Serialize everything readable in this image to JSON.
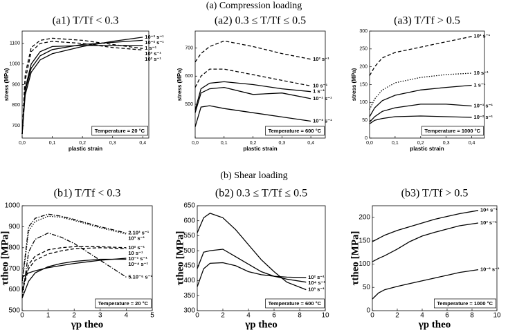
{
  "sections": [
    "(a) Compression loading",
    "(b) Shear loading"
  ],
  "chart_data": [
    {
      "type": "line",
      "title": "(a1) T/Tf < 0.3",
      "xlabel": "plastic strain",
      "ylabel": "stress (MPa)",
      "annotation": "Temperature = 20 °C",
      "xlim": [
        0,
        0.42
      ],
      "ylim": [
        640,
        1160
      ],
      "xticks": [
        {
          "value": 0,
          "label": "0,0"
        },
        {
          "value": 0.1,
          "label": "0,1"
        },
        {
          "value": 0.2,
          "label": "0,2"
        },
        {
          "value": 0.3,
          "label": "0,3"
        },
        {
          "value": 0.4,
          "label": "0,4"
        }
      ],
      "yticks": [
        700,
        800,
        900,
        1000,
        1100
      ],
      "x": [
        0,
        0.01,
        0.03,
        0.06,
        0.1,
        0.2,
        0.3,
        0.4
      ],
      "series": [
        {
          "name": "10⁻³ s⁻¹",
          "color": "#000000",
          "dash": "solid",
          "values": [
            660,
            850,
            960,
            1020,
            1050,
            1085,
            1110,
            1130
          ]
        },
        {
          "name": "10⁻² s⁻¹",
          "color": "#000000",
          "dash": "solid",
          "values": [
            660,
            870,
            980,
            1040,
            1070,
            1095,
            1105,
            1115
          ]
        },
        {
          "name": "1 s⁻¹",
          "color": "#000000",
          "dash": "solid",
          "values": [
            660,
            880,
            1000,
            1060,
            1085,
            1090,
            1090,
            1090
          ]
        },
        {
          "name": "10² s⁻¹",
          "color": "#000000",
          "dash": "dashed",
          "values": [
            660,
            920,
            1060,
            1100,
            1110,
            1100,
            1080,
            1068
          ]
        },
        {
          "name": "10³ s⁻¹",
          "color": "#000000",
          "dash": "dashed",
          "values": [
            660,
            950,
            1080,
            1115,
            1125,
            1115,
            1095,
            1075
          ]
        }
      ]
    },
    {
      "type": "line",
      "title": "(a2) 0.3 ≤ T/Tf ≤ 0.5",
      "ylabel": "stress (MPa)",
      "xlabel": "plastic strain",
      "annotation": "Temperature = 600 °C",
      "xlim": [
        0,
        0.45
      ],
      "ylim": [
        380,
        760
      ],
      "xticks": [
        {
          "value": 0,
          "label": "0,0"
        },
        {
          "value": 0.1,
          "label": "0,1"
        },
        {
          "value": 0.2,
          "label": "0,2"
        },
        {
          "value": 0.3,
          "label": "0,3"
        },
        {
          "value": 0.4,
          "label": "0,4"
        }
      ],
      "yticks": [
        500,
        600,
        700
      ],
      "x": [
        0,
        0.02,
        0.05,
        0.1,
        0.2,
        0.3,
        0.4
      ],
      "series": [
        {
          "name": "10² s⁻¹",
          "color": "#000000",
          "dash": "dashed",
          "values": [
            650,
            680,
            705,
            725,
            705,
            680,
            660
          ]
        },
        {
          "name": "10 s⁻¹",
          "color": "#000000",
          "dash": "dashed",
          "values": [
            560,
            600,
            625,
            625,
            605,
            585,
            565
          ]
        },
        {
          "name": "1 s⁻¹",
          "color": "#000000",
          "dash": "solid",
          "values": [
            480,
            555,
            575,
            580,
            570,
            555,
            545
          ]
        },
        {
          "name": "10⁻¹ s⁻¹",
          "color": "#000000",
          "dash": "solid",
          "values": [
            470,
            540,
            555,
            560,
            535,
            540,
            520
          ]
        },
        {
          "name": "10⁻³ s⁻¹",
          "color": "#000000",
          "dash": "solid",
          "values": [
            420,
            490,
            495,
            485,
            470,
            455,
            440
          ]
        }
      ]
    },
    {
      "type": "line",
      "title": "(a3) T/Tf > 0.5",
      "ylabel": "stress (MPa)",
      "xlabel": "plastic strain",
      "annotation": "Temperature = 1000 °C",
      "xlim": [
        0,
        0.45
      ],
      "ylim": [
        0,
        300
      ],
      "xticks": [
        {
          "value": 0,
          "label": "0,0"
        },
        {
          "value": 0.1,
          "label": "0,1"
        },
        {
          "value": 0.2,
          "label": "0,2"
        },
        {
          "value": 0.3,
          "label": "0,3"
        },
        {
          "value": 0.4,
          "label": "0,4"
        }
      ],
      "yticks": [
        0,
        50,
        100,
        150,
        200,
        250,
        300
      ],
      "x": [
        0,
        0.02,
        0.05,
        0.1,
        0.2,
        0.3,
        0.4
      ],
      "series": [
        {
          "name": "10³ s⁻¹",
          "color": "#000000",
          "dash": "dashed",
          "values": [
            175,
            200,
            225,
            240,
            255,
            270,
            285
          ]
        },
        {
          "name": "10 s⁻¹",
          "color": "#000000",
          "dash": "dotted",
          "values": [
            80,
            110,
            135,
            155,
            170,
            178,
            182
          ]
        },
        {
          "name": "1 s⁻¹",
          "color": "#000000",
          "dash": "solid",
          "values": [
            60,
            85,
            105,
            120,
            135,
            142,
            148
          ]
        },
        {
          "name": "10⁻¹ s⁻¹",
          "color": "#000000",
          "dash": "solid",
          "values": [
            45,
            60,
            75,
            85,
            95,
            95,
            90
          ]
        },
        {
          "name": "10⁻² s⁻¹",
          "color": "#000000",
          "dash": "solid",
          "values": [
            40,
            50,
            55,
            60,
            62,
            60,
            58
          ]
        }
      ]
    },
    {
      "type": "line",
      "title": "(b1) T/Tf < 0.3",
      "ylabel": "τtheo [MPa]",
      "xlabel": "γp theo",
      "annotation": "Temperature = 20 °C",
      "xlim": [
        0,
        5
      ],
      "ylim": [
        500,
        1000
      ],
      "xticks": [
        0,
        1,
        2,
        3,
        4,
        5
      ],
      "yticks": [
        500,
        600,
        700,
        800,
        900,
        1000
      ],
      "x": [
        0,
        0.25,
        0.5,
        1,
        1.5,
        2,
        3,
        4
      ],
      "series": [
        {
          "name": "2.10³ s⁻¹",
          "color": "#000000",
          "dash": "dashdot",
          "values": [
            640,
            900,
            940,
            960,
            950,
            935,
            900,
            870
          ]
        },
        {
          "name": "10³ s⁻¹",
          "color": "#000000",
          "dash": "dotted",
          "values": [
            630,
            880,
            925,
            950,
            945,
            930,
            895,
            865
          ]
        },
        {
          "name": "10² s⁻¹",
          "color": "#000000",
          "dash": "dashed",
          "values": [
            600,
            720,
            760,
            790,
            800,
            805,
            805,
            800
          ]
        },
        {
          "name": "10 s⁻¹",
          "color": "#000000",
          "dash": "dashed",
          "values": [
            590,
            700,
            740,
            770,
            785,
            795,
            800,
            795
          ]
        },
        {
          "name": "10⁻¹ s⁻¹",
          "color": "#000000",
          "dash": "solid",
          "values": [
            660,
            680,
            690,
            705,
            715,
            725,
            740,
            750
          ]
        },
        {
          "name": "10⁻⁴ s⁻¹",
          "color": "#000000",
          "dash": "solid",
          "values": [
            560,
            640,
            680,
            710,
            725,
            735,
            745,
            745
          ]
        },
        {
          "name": "5.10⁻⁵ s⁻¹",
          "color": "#000000",
          "dash": "dashdot",
          "values": [
            560,
            780,
            840,
            870,
            850,
            820,
            740,
            660
          ]
        }
      ]
    },
    {
      "type": "line",
      "title": "(b2) 0.3 ≤ T/Tf ≤ 0.5",
      "ylabel": "τtheo [MPa]",
      "xlabel": "γp theo",
      "annotation": "Temperature = 600 °C",
      "xlim": [
        0,
        10
      ],
      "ylim": [
        300,
        650
      ],
      "xticks": [
        0,
        2,
        4,
        6,
        8,
        10
      ],
      "yticks": [
        300,
        350,
        400,
        450,
        500,
        550,
        600,
        650
      ],
      "x": [
        0,
        0.5,
        1,
        2,
        3,
        4,
        5,
        6,
        7,
        8.5
      ],
      "series": [
        {
          "name": "10² s⁻¹",
          "color": "#000000",
          "dash": "solid",
          "values": [
            380,
            440,
            458,
            460,
            450,
            430,
            420,
            415,
            412,
            410
          ]
        },
        {
          "name": "10⁴ s⁻¹",
          "color": "#000000",
          "dash": "solid",
          "values": [
            440,
            495,
            500,
            505,
            480,
            455,
            430,
            415,
            405,
            395
          ]
        },
        {
          "name": "10³ s⁻¹",
          "color": "#000000",
          "dash": "solid",
          "values": [
            560,
            610,
            625,
            610,
            570,
            520,
            470,
            430,
            395,
            370
          ]
        }
      ]
    },
    {
      "type": "line",
      "title": "(b3) T/Tf > 0.5",
      "ylabel": "τtheo [MPa]",
      "xlabel": "γp theo",
      "annotation": "Temperature = 1000 °C",
      "xlim": [
        0,
        10
      ],
      "ylim": [
        0,
        225
      ],
      "xticks": [
        0,
        2,
        4,
        6,
        8,
        10
      ],
      "yticks": [
        0,
        50,
        100,
        150,
        200
      ],
      "x": [
        0,
        0.5,
        1,
        2,
        3,
        4,
        5,
        6,
        7,
        8.5
      ],
      "series": [
        {
          "name": "10⁴ s⁻¹",
          "color": "#000000",
          "dash": "solid",
          "values": [
            148,
            155,
            162,
            172,
            180,
            188,
            196,
            202,
            208,
            215
          ]
        },
        {
          "name": "10³ s⁻¹",
          "color": "#000000",
          "dash": "solid",
          "values": [
            105,
            112,
            118,
            132,
            148,
            160,
            168,
            175,
            182,
            188
          ]
        },
        {
          "name": "10⁻² s⁻¹",
          "color": "#000000",
          "dash": "solid",
          "values": [
            25,
            38,
            45,
            52,
            58,
            64,
            70,
            76,
            82,
            88
          ]
        }
      ]
    }
  ]
}
